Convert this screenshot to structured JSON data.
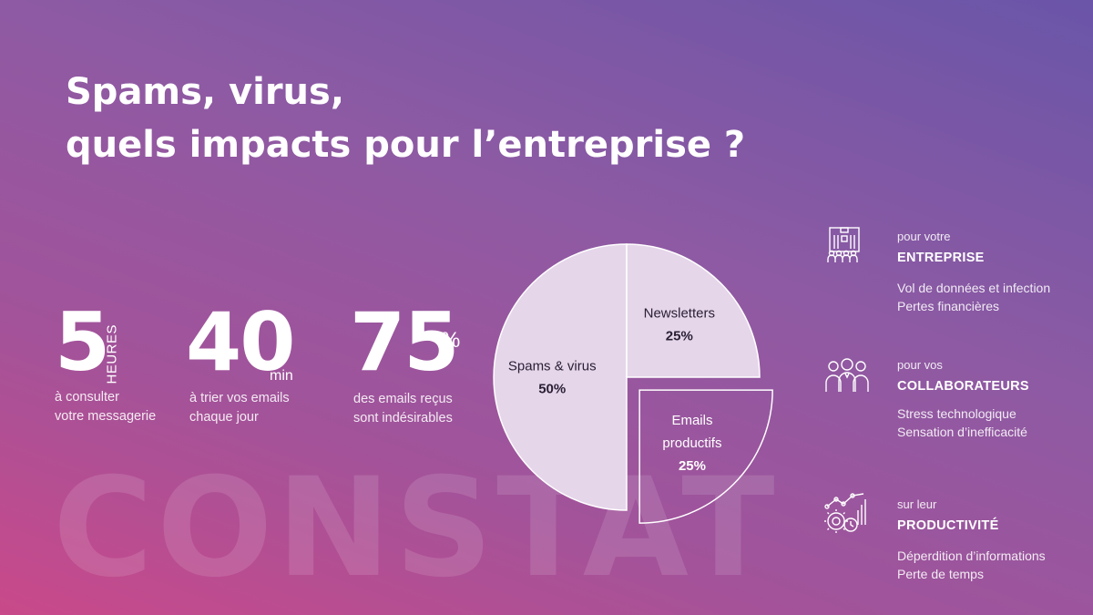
{
  "watermark": "CONSTAT",
  "title": {
    "line1": "Spams, virus,",
    "line2": "quels impacts pour l’entreprise ?"
  },
  "stats": [
    {
      "value": "5",
      "unit": "HEURES",
      "desc": [
        "à consulter",
        "votre messagerie"
      ]
    },
    {
      "value": "40",
      "unit": "min",
      "desc": [
        "à trier vos emails",
        "chaque jour"
      ]
    },
    {
      "value": "75",
      "unit": "%",
      "desc": [
        "des emails reçus",
        "sont indésirables"
      ]
    }
  ],
  "chart_data": {
    "type": "pie",
    "title": "",
    "slices": [
      {
        "label": [
          "Spams & virus"
        ],
        "value": 50,
        "value_label": "50%",
        "exploded": false
      },
      {
        "label": [
          "Newsletters"
        ],
        "value": 25,
        "value_label": "25%",
        "exploded": false
      },
      {
        "label": [
          "Emails",
          "productifs"
        ],
        "value": 25,
        "value_label": "25%",
        "exploded": true
      }
    ],
    "colors": {
      "fill": "#e6d6ea",
      "stroke": "#ffffff"
    }
  },
  "impacts": [
    {
      "icon": "building-people-icon",
      "small": "pour votre",
      "head": "ENTREPRISE",
      "lines": [
        "Vol de données et infection",
        "Pertes financières"
      ]
    },
    {
      "icon": "team-people-icon",
      "small": "pour vos",
      "head": "COLLABORATEURS",
      "lines": [
        "Stress technologique",
        "Sensation d’inefficacité"
      ]
    },
    {
      "icon": "productivity-gears-icon",
      "small": "sur leur",
      "head": "PRODUCTIVITÉ",
      "lines": [
        "Déperdition d’informations",
        "Perte de temps"
      ]
    }
  ]
}
